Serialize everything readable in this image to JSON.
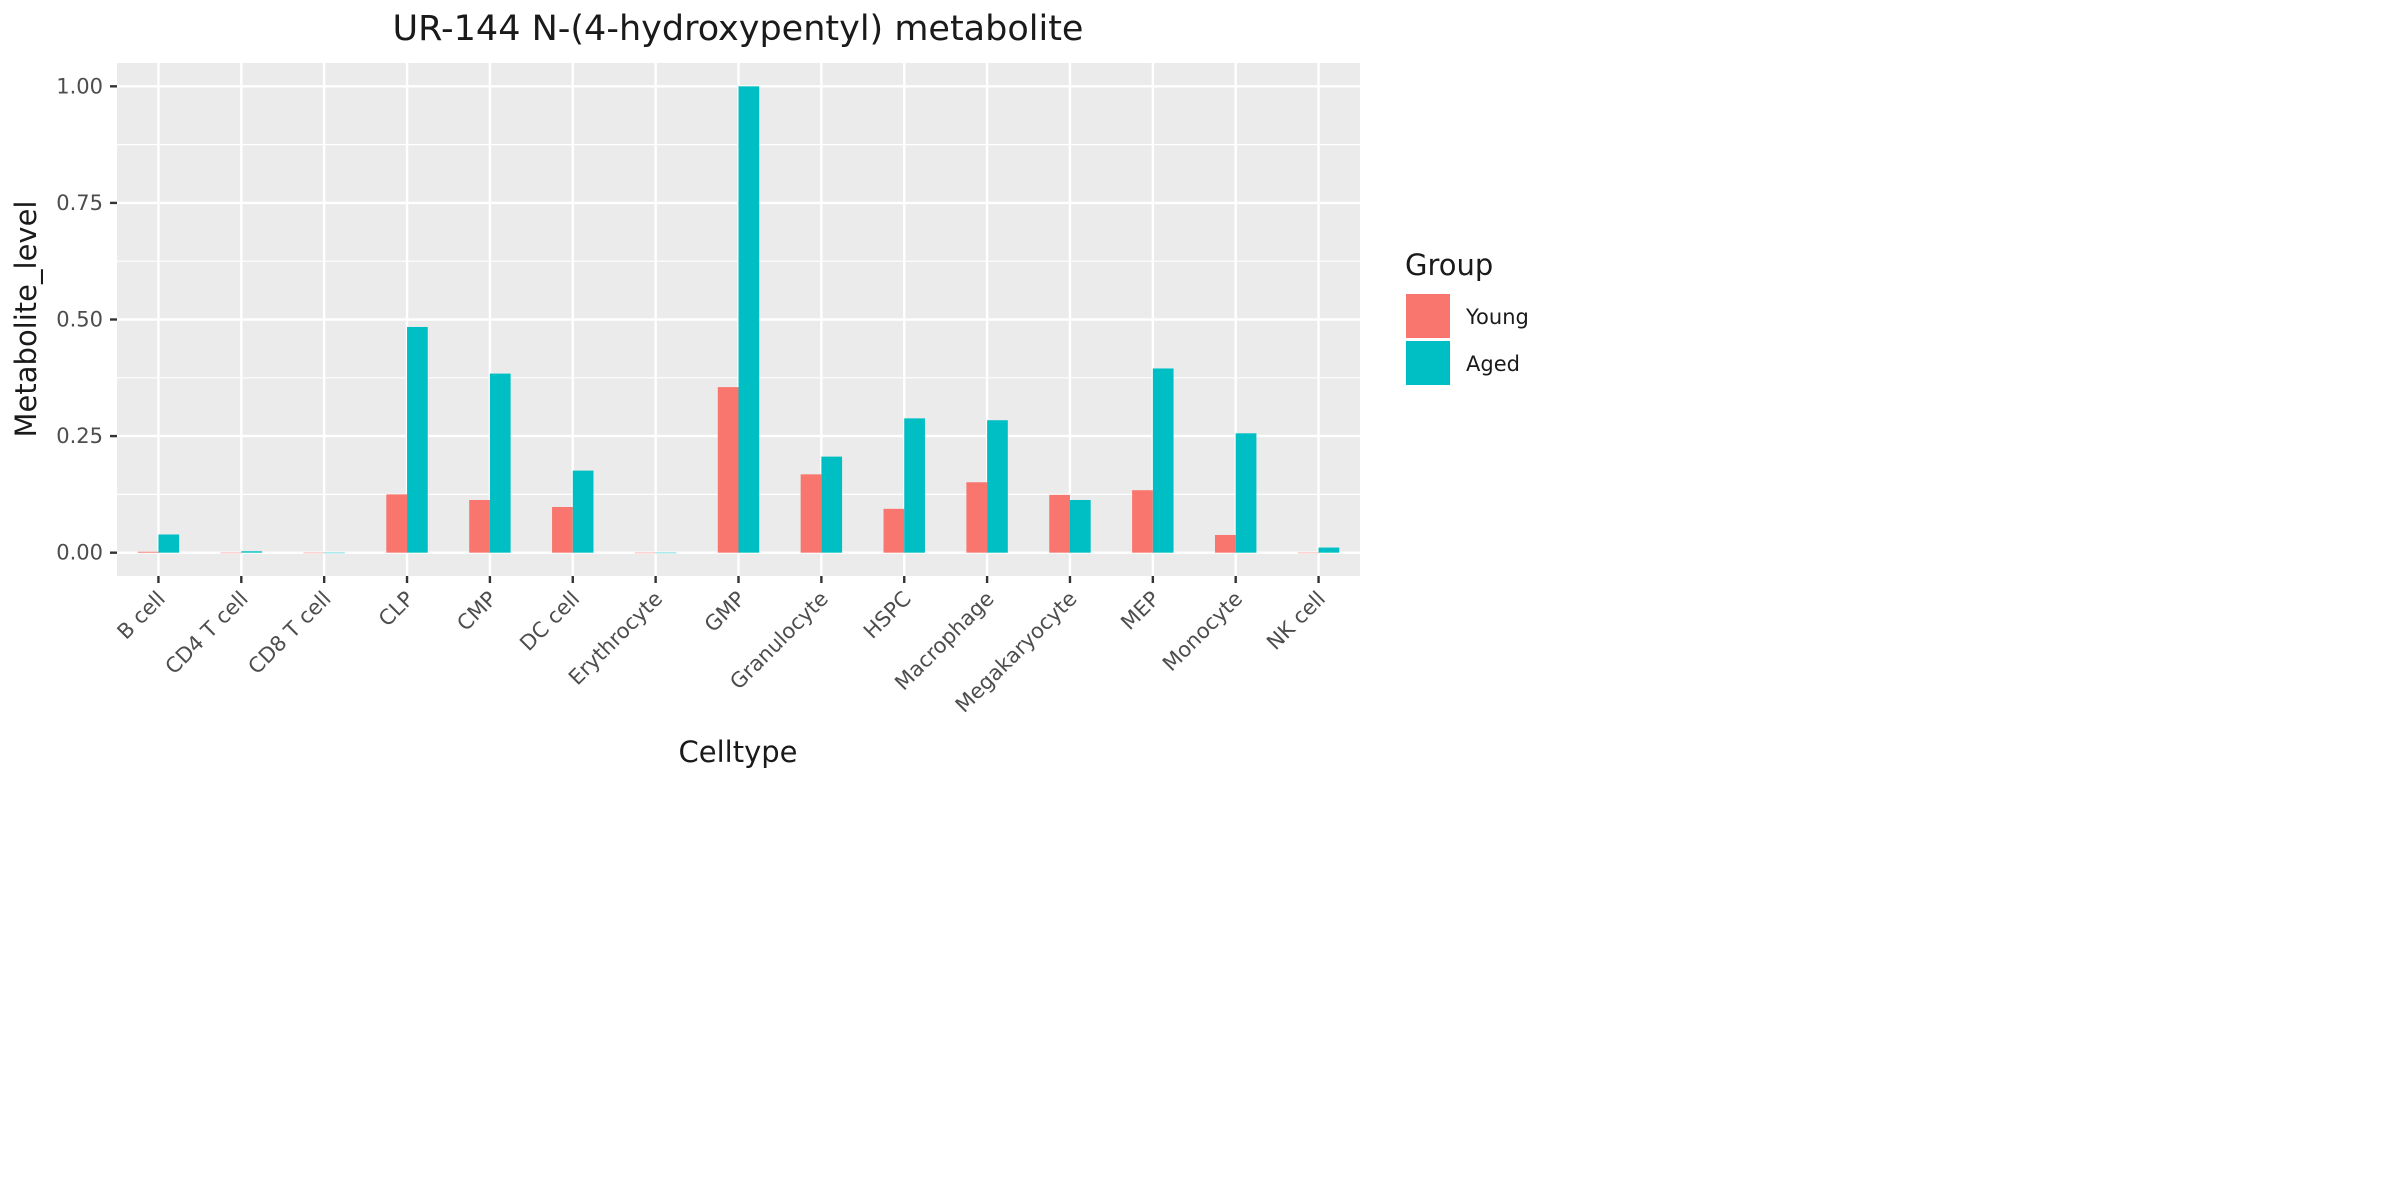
{
  "chart_data": {
    "type": "bar",
    "title": "UR-144 N-(4-hydroxypentyl) metabolite",
    "xlabel": "Celltype",
    "ylabel": "Metabolite_level",
    "categories": [
      "B cell",
      "CD4 T cell",
      "CD8 T cell",
      "CLP",
      "CMP",
      "DC cell",
      "Erythrocyte",
      "GMP",
      "Granulocyte",
      "HSPC",
      "Macrophage",
      "Megakaryocyte",
      "MEP",
      "Monocyte",
      "NK cell"
    ],
    "series": [
      {
        "name": "Young",
        "color": "#F8766D",
        "values": [
          0.002,
          0,
          0,
          0.125,
          0.113,
          0.098,
          0,
          0.355,
          0.168,
          0.094,
          0.151,
          0.124,
          0.134,
          0.038,
          0
        ]
      },
      {
        "name": "Aged",
        "color": "#00BFC4",
        "values": [
          0.039,
          0.003,
          0,
          0.484,
          0.384,
          0.176,
          0,
          1.0,
          0.206,
          0.288,
          0.284,
          0.113,
          0.395,
          0.256,
          0.011
        ]
      }
    ],
    "ylim": [
      -0.05,
      1.05
    ],
    "yticks": [
      0.0,
      0.25,
      0.5,
      0.75,
      1.0
    ],
    "ytick_labels": [
      "0.00",
      "0.25",
      "0.50",
      "0.75",
      "1.00"
    ],
    "legend": {
      "title": "Group",
      "position": "right"
    },
    "grid": true,
    "panel_background": "#EBEBEB",
    "grid_color": "#FFFFFF"
  }
}
